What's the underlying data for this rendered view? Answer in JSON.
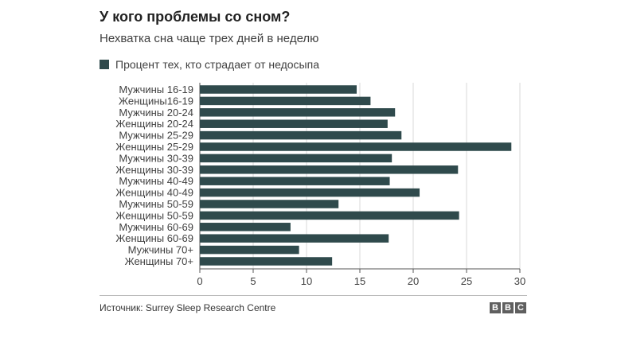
{
  "header": {
    "title": "У кого проблемы со сном?",
    "subtitle": "Нехватка сна чаще трех дней в неделю"
  },
  "legend": {
    "label": "Процент тех, кто страдает от недосыпа",
    "color": "#2f4a4c"
  },
  "chart_data": {
    "type": "bar",
    "orientation": "horizontal",
    "title": "У кого проблемы со сном?",
    "subtitle": "Нехватка сна чаще трех дней в неделю",
    "categories": [
      "Мужчины 16-19",
      "Женщины16-19",
      "Мужчины 20-24",
      "Женщины 20-24",
      "Мужчины 25-29",
      "Женщины 25-29",
      "Мужчины 30-39",
      "Женщины 30-39",
      "Мужчины 40-49",
      "Женщины 40-49",
      "Мужчины 50-59",
      "Женщины 50-59",
      "Мужчины 60-69",
      "Женщины 60-69",
      "Мужчины 70+",
      "Женщины 70+"
    ],
    "series": [
      {
        "name": "Процент тех, кто страдает от недосыпа",
        "values": [
          14.7,
          16.0,
          18.3,
          17.6,
          18.9,
          29.2,
          18.0,
          24.2,
          17.8,
          20.6,
          13.0,
          24.3,
          8.5,
          17.7,
          9.3,
          12.4
        ]
      }
    ],
    "xlim": [
      0,
      30
    ],
    "xticks": [
      "0",
      "5",
      "10",
      "15",
      "20",
      "25",
      "30"
    ],
    "xlabel": "",
    "ylabel": "",
    "grid": true,
    "legend_position": "top-left",
    "bar_color": "#2f4a4c"
  },
  "footer": {
    "source": "Источник: Surrey Sleep Research Centre",
    "logo_letters": [
      "B",
      "B",
      "C"
    ]
  }
}
